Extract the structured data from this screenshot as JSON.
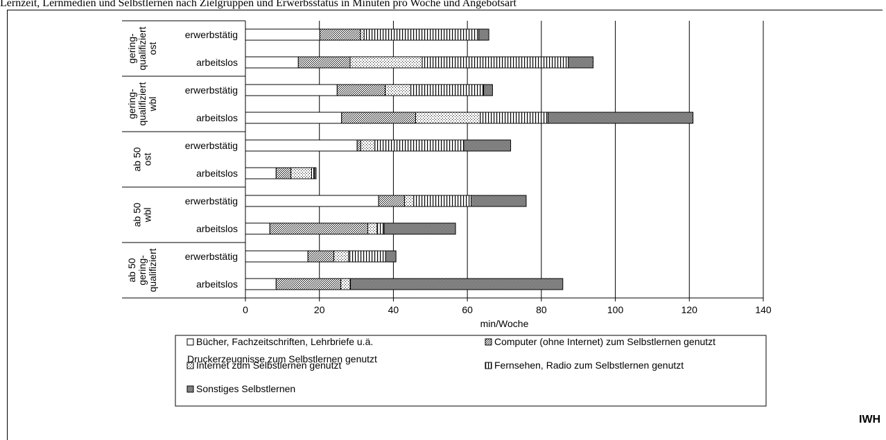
{
  "top_text": "Lernzeit, Lernmedien und Selbstlernen nach Zielgruppen und Erwerbsstatus in Minuten pro Woche und Angebotsart",
  "footer_logo": "IWH",
  "chart_data": {
    "type": "bar",
    "orientation": "horizontal",
    "stacked": true,
    "xlabel": "min/Woche",
    "xlim": [
      0,
      140
    ],
    "xticks": [
      0,
      20,
      40,
      60,
      80,
      100,
      120,
      140
    ],
    "grid": true,
    "legend_position": "bottom",
    "groups": [
      {
        "label": "gering-\nqualifiziert\nost",
        "rows": [
          "erwerbstätig",
          "arbeitslos"
        ]
      },
      {
        "label": "gering-\nqualifiziert\nwbl",
        "rows": [
          "erwerbstätig",
          "arbeitslos"
        ]
      },
      {
        "label": "ab 50\nost",
        "rows": [
          "erwerbstätig",
          "arbeitslos"
        ]
      },
      {
        "label": "ab 50\nwbl",
        "rows": [
          "erwerbstätig",
          "arbeitslos"
        ]
      },
      {
        "label": "ab 50\ngering-\nqualifiziert",
        "rows": [
          "erwerbstätig",
          "arbeitslos"
        ]
      }
    ],
    "categories": [
      "erwerbstätig",
      "arbeitslos",
      "erwerbstätig",
      "arbeitslos",
      "erwerbstätig",
      "arbeitslos",
      "erwerbstätig",
      "arbeitslos",
      "erwerbstätig",
      "arbeitslos"
    ],
    "series": [
      {
        "name": "Bücher, Fachzeitschriften, Lehrbriefe u.ä. Druckerzeugnisse zum Selbstlernen genutzt",
        "pattern": "blank",
        "values": [
          20.1,
          14.3,
          24.8,
          26.0,
          30.2,
          8.3,
          36.0,
          6.6,
          16.9,
          8.3
        ]
      },
      {
        "name": "Computer (ohne Internet) zum Selbstlernen genutzt",
        "pattern": "dense-dots",
        "values": [
          11.0,
          14.0,
          13.0,
          20.0,
          1.0,
          4.0,
          7.0,
          26.5,
          7.0,
          17.5
        ]
      },
      {
        "name": "Internet zum Selbstlernen genutzt",
        "pattern": "sparse-dots",
        "values": [
          1.0,
          19.5,
          6.9,
          17.5,
          3.8,
          5.6,
          2.5,
          2.5,
          4.0,
          2.5
        ]
      },
      {
        "name": "Fernsehen, Radio zum Selbstlernen genutzt",
        "pattern": "vertical-lines",
        "values": [
          31.0,
          39.5,
          19.7,
          18.3,
          24.0,
          0.7,
          15.5,
          1.9,
          10.0,
          0.1
        ]
      },
      {
        "name": "Sonstiges Selbstlernen",
        "pattern": "checker",
        "values": [
          2.7,
          6.7,
          2.4,
          39.2,
          12.7,
          0.5,
          14.9,
          19.3,
          2.8,
          57.4
        ]
      }
    ]
  }
}
